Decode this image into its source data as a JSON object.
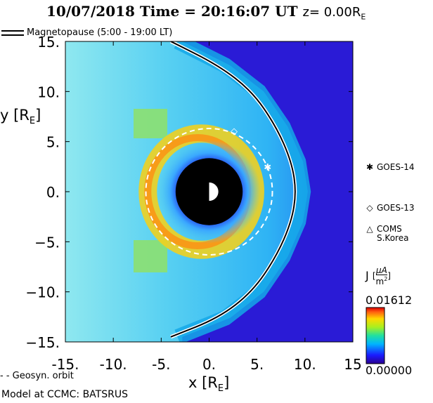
{
  "title": {
    "date": "10/07/2018",
    "time_text": "Time = 20:16:07 UT",
    "z_text": "z= 0.00R",
    "z_sub": "E"
  },
  "magnetopause_legend": "Magnetopause (5:00 - 19:00 LT)",
  "geosync_legend": "- -  Geosyn. orbit",
  "model_label": "Model at CCMC: BATSRUS",
  "colorbar": {
    "label": "J",
    "unit_num": "μA",
    "unit_den": "m",
    "unit_den_sup": "2",
    "max_label": "0.01612",
    "min_label": "0.00000",
    "max": 0.01612,
    "min": 0.0
  },
  "satellites": [
    {
      "symbol": "✱",
      "name": "GOES-14",
      "x": 6.1,
      "y": 2.5
    },
    {
      "symbol": "◇",
      "name": "GOES-13",
      "x": 2.6,
      "y": 6.1
    },
    {
      "symbol": "△",
      "name": "COMS\nS.Korea",
      "x": null,
      "y": null
    }
  ],
  "colors": {
    "background_low": "#2a1bd6",
    "magnetosheath": "#38c6f0",
    "ring_current": "#ff8a10",
    "earth": "#000000"
  },
  "chart_data": {
    "type": "heatmap",
    "title": "10/07/2018 Time = 20:16:07 UT z= 0.00RE",
    "quantity": "J",
    "xlabel": "x [RE]",
    "ylabel": "y [RE]",
    "xlim": [
      -15,
      15
    ],
    "ylim": [
      -15,
      15
    ],
    "xticks": [
      -15,
      -10,
      -5,
      0,
      5,
      10,
      15
    ],
    "xtick_labels": [
      "-15.",
      "-10.",
      "-5.",
      "0.",
      "5.",
      "10.",
      "15"
    ],
    "yticks": [
      15,
      10,
      5,
      0,
      -5,
      -10,
      -15
    ],
    "ytick_labels": [
      "15.",
      "10.",
      "5.",
      "0.",
      "-5.",
      "-10.",
      "-15."
    ],
    "color_range": [
      0.0,
      0.01612
    ],
    "earth_radius": 3.5,
    "geosync_orbit_radius": 6.6,
    "magnetopause": [
      {
        "x": -4.0,
        "y": 15.0
      },
      {
        "x": 1.0,
        "y": 12.6
      },
      {
        "x": 4.5,
        "y": 10.0
      },
      {
        "x": 7.0,
        "y": 6.5
      },
      {
        "x": 8.6,
        "y": 3.0
      },
      {
        "x": 9.1,
        "y": 0.0
      },
      {
        "x": 8.6,
        "y": -3.0
      },
      {
        "x": 7.0,
        "y": -6.5
      },
      {
        "x": 4.5,
        "y": -10.0
      },
      {
        "x": 1.0,
        "y": -12.6
      },
      {
        "x": -4.0,
        "y": -14.5
      }
    ]
  }
}
